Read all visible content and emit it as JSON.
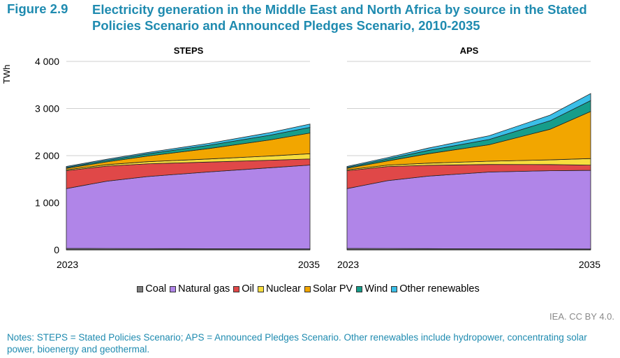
{
  "figure": {
    "number": "Figure 2.9",
    "title": "Electricity generation in the Middle East and North Africa by source in the Stated Policies Scenario and Announced Pledges Scenario, 2010-2035"
  },
  "credit": "IEA. CC BY 4.0.",
  "notes": "Notes: STEPS = Stated Policies Scenario; APS = Announced Pledges Scenario. Other renewables include hydropower, concentrating solar power, bioenergy and geothermal.",
  "chart_data": [
    {
      "type": "area",
      "stacked": true,
      "title": "STEPS",
      "ylabel": "TWh",
      "ylim": [
        0,
        4000
      ],
      "yticks": [
        0,
        1000,
        2000,
        3000,
        4000
      ],
      "ytick_labels": [
        "0",
        "1 000",
        "2 000",
        "3 000",
        "4 000"
      ],
      "x": [
        2023,
        2025,
        2027,
        2030,
        2033,
        2035
      ],
      "xtick_labels": [
        "2023",
        "2035"
      ],
      "grid": true,
      "series": [
        {
          "name": "Coal",
          "color": "#7f7f7f",
          "values": [
            30,
            28,
            26,
            24,
            22,
            20
          ]
        },
        {
          "name": "Natural gas",
          "color": "#b085e8",
          "values": [
            1270,
            1430,
            1530,
            1630,
            1720,
            1780
          ]
        },
        {
          "name": "Oil",
          "color": "#e04848",
          "values": [
            380,
            320,
            270,
            210,
            160,
            130
          ]
        },
        {
          "name": "Nuclear",
          "color": "#f7dd3e",
          "values": [
            20,
            30,
            45,
            65,
            90,
            110
          ]
        },
        {
          "name": "Solar PV",
          "color": "#f2a600",
          "values": [
            30,
            60,
            120,
            220,
            340,
            440
          ]
        },
        {
          "name": "Wind",
          "color": "#169d8a",
          "values": [
            20,
            30,
            45,
            70,
            100,
            120
          ]
        },
        {
          "name": "Other renewables",
          "color": "#3bbfe8",
          "values": [
            20,
            25,
            30,
            40,
            55,
            70
          ]
        }
      ]
    },
    {
      "type": "area",
      "stacked": true,
      "title": "APS",
      "ylim": [
        0,
        4000
      ],
      "x": [
        2023,
        2025,
        2027,
        2030,
        2033,
        2035
      ],
      "xtick_labels": [
        "2023",
        "2035"
      ],
      "grid": true,
      "series": [
        {
          "name": "Coal",
          "color": "#7f7f7f",
          "values": [
            30,
            28,
            25,
            22,
            20,
            18
          ]
        },
        {
          "name": "Natural gas",
          "color": "#b085e8",
          "values": [
            1270,
            1440,
            1540,
            1630,
            1660,
            1670
          ]
        },
        {
          "name": "Oil",
          "color": "#e04848",
          "values": [
            380,
            300,
            230,
            160,
            130,
            110
          ]
        },
        {
          "name": "Nuclear",
          "color": "#f7dd3e",
          "values": [
            20,
            30,
            45,
            70,
            100,
            140
          ]
        },
        {
          "name": "Solar PV",
          "color": "#f2a600",
          "values": [
            30,
            90,
            200,
            350,
            650,
            1000
          ]
        },
        {
          "name": "Wind",
          "color": "#169d8a",
          "values": [
            20,
            40,
            70,
            110,
            180,
            230
          ]
        },
        {
          "name": "Other renewables",
          "color": "#3bbfe8",
          "values": [
            20,
            30,
            50,
            80,
            120,
            150
          ]
        }
      ]
    }
  ]
}
